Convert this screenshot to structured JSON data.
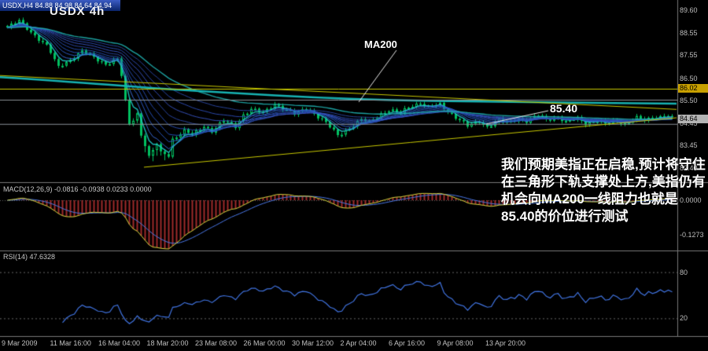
{
  "window": {
    "titlebar": "USDX,H4 84.88 84.98 84.64 84.94",
    "chart_label": "USDX 4h"
  },
  "indicators": {
    "macd_label": "MACD(12,26,9) -0.0816 -0.0938 0.0233 0.0000",
    "rsi_label": "RSI(14) 47.6328"
  },
  "annotations": {
    "ma200_label": "MA200",
    "level_label": "85.40",
    "note_cn": "我们预期美指正在启稳,预计将守住在三角形下轨支撑处上方,美指仍有机会向MA200一线阻力也就是85.40的价位进行测试"
  },
  "colors": {
    "background": "#000000",
    "candle": "#00c060",
    "ma200": "#17b2b2",
    "trendline": "#c8c800",
    "silver_line": "#8a9096",
    "macd_hist": "#9e2b2b",
    "macd_line": "#d8d840",
    "macd_signal": "#4a78e8",
    "rsi_line": "#4073e0",
    "axis_text": "#bdbdbd",
    "pointer_line": "#e8e8e8",
    "ema_fan": [
      "#20c8c8",
      "#3b6fe0",
      "#2f5fd0",
      "#2856c4",
      "#2a50b8",
      "#2d4aac",
      "#3a57c9",
      "#3050bb",
      "#2b49a8",
      "#1fb0b0"
    ]
  },
  "chart_data": {
    "type": "candlestick",
    "symbol": "USDX",
    "timeframe": "H4",
    "current_bar": {
      "open": 84.88,
      "high": 84.98,
      "low": 84.64,
      "close": 84.94
    },
    "ylim": [
      81.7,
      90.1
    ],
    "candle_count": 170,
    "price_ticks": [
      89.6,
      88.55,
      87.55,
      86.5,
      85.5,
      84.45,
      83.45,
      82.4
    ],
    "price_line_badges": [
      {
        "value": "86.02",
        "bg": "#c8a000"
      },
      {
        "value": "84.64",
        "bg": "#b4b4b4"
      }
    ],
    "y_ticks_macd": [
      "0.0000",
      "-0.1273"
    ],
    "y_ticks_rsi": [
      80,
      20
    ],
    "x_labels": [
      "9 Mar 2009",
      "11 Mar 16:00",
      "16 Mar 04:00",
      "18 Mar 20:00",
      "23 Mar 08:00",
      "26 Mar 00:00",
      "30 Mar 12:00",
      "2 Apr 04:00",
      "6 Apr 16:00",
      "9 Apr 08:00",
      "13 Apr 20:00"
    ],
    "candles_anchor_points": [
      [
        0,
        88.8
      ],
      [
        3,
        89.1
      ],
      [
        7,
        88.45
      ],
      [
        10,
        87.95
      ],
      [
        13,
        87.05
      ],
      [
        16,
        87.35
      ],
      [
        19,
        87.7
      ],
      [
        22,
        87.45
      ],
      [
        25,
        87.15
      ],
      [
        28,
        87.35
      ],
      [
        29,
        86.6
      ],
      [
        30,
        85.5
      ],
      [
        31,
        84.4
      ],
      [
        33,
        84.9
      ],
      [
        34,
        83.9
      ],
      [
        36,
        82.95
      ],
      [
        38,
        83.5
      ],
      [
        39,
        83.15
      ],
      [
        41,
        83.0
      ],
      [
        42,
        83.75
      ],
      [
        45,
        84.1
      ],
      [
        47,
        83.9
      ],
      [
        50,
        84.35
      ],
      [
        52,
        84.1
      ],
      [
        55,
        84.55
      ],
      [
        58,
        84.3
      ],
      [
        60,
        84.85
      ],
      [
        62,
        85.1
      ],
      [
        65,
        84.9
      ],
      [
        68,
        85.35
      ],
      [
        71,
        85.05
      ],
      [
        73,
        84.85
      ],
      [
        76,
        85.15
      ],
      [
        78,
        84.9
      ],
      [
        81,
        84.45
      ],
      [
        84,
        83.9
      ],
      [
        87,
        84.25
      ],
      [
        90,
        84.6
      ],
      [
        92,
        84.5
      ],
      [
        95,
        84.9
      ],
      [
        97,
        85.05
      ],
      [
        100,
        84.9
      ],
      [
        102,
        85.2
      ],
      [
        105,
        85.4
      ],
      [
        107,
        85.15
      ],
      [
        110,
        85.3
      ],
      [
        112,
        85.0
      ],
      [
        115,
        84.6
      ],
      [
        117,
        84.3
      ],
      [
        120,
        84.55
      ],
      [
        122,
        84.3
      ],
      [
        125,
        84.6
      ],
      [
        127,
        84.45
      ],
      [
        130,
        84.7
      ],
      [
        132,
        84.55
      ],
      [
        135,
        84.8
      ],
      [
        137,
        84.6
      ],
      [
        140,
        84.75
      ],
      [
        142,
        84.5
      ],
      [
        145,
        84.65
      ],
      [
        147,
        84.45
      ],
      [
        150,
        84.6
      ],
      [
        152,
        84.4
      ],
      [
        155,
        84.55
      ],
      [
        157,
        84.45
      ],
      [
        160,
        84.7
      ],
      [
        162,
        84.55
      ],
      [
        165,
        84.75
      ],
      [
        168,
        84.8
      ],
      [
        169,
        84.64
      ]
    ],
    "ema_fan_periods": [
      4,
      6,
      9,
      12,
      16,
      21,
      27,
      34,
      43,
      55
    ],
    "ma200_points": [
      [
        0,
        86.55
      ],
      [
        100,
        86.32
      ],
      [
        200,
        86.02
      ],
      [
        300,
        85.82
      ],
      [
        400,
        85.62
      ],
      [
        500,
        85.5
      ],
      [
        600,
        85.44
      ],
      [
        700,
        85.4
      ],
      [
        860,
        85.34
      ]
    ],
    "trendlines": [
      {
        "name": "descending-resistance",
        "x1": 0,
        "p1": 86.62,
        "x2": 860,
        "p2": 85.08
      },
      {
        "name": "ascending-support",
        "x1": 183,
        "p1": 82.45,
        "x2": 860,
        "p2": 84.7
      }
    ],
    "horizontal_lines": [
      {
        "price": 86.02,
        "style": "yellow"
      },
      {
        "price": 85.52,
        "style": "silver"
      },
      {
        "price": 84.42,
        "style": "silver"
      }
    ],
    "macd": {
      "fast": 12,
      "slow": 26,
      "signal": 9,
      "values": [
        -0.0816,
        -0.0938,
        0.0233,
        0.0
      ]
    },
    "rsi": {
      "period": 14,
      "value": 47.6328
    }
  }
}
